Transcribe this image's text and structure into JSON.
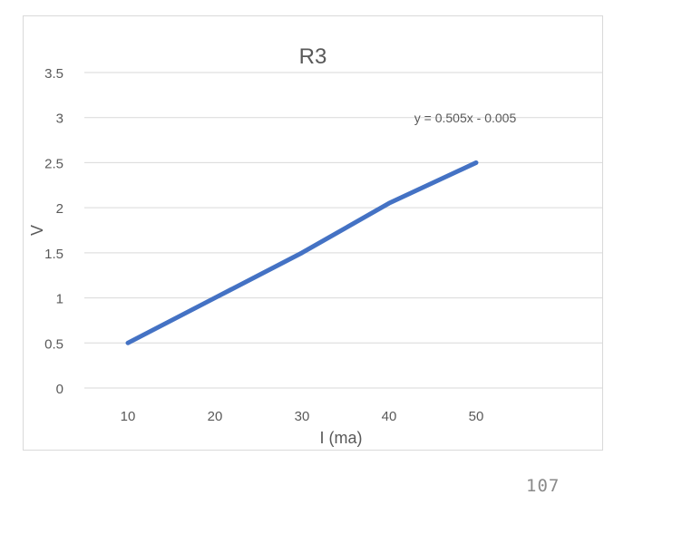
{
  "chart_data": {
    "type": "line",
    "title": "R3",
    "xlabel": "I (ma)",
    "ylabel": "V",
    "categories": [
      "10",
      "20",
      "30",
      "40",
      "50"
    ],
    "x": [
      10,
      20,
      30,
      40,
      50
    ],
    "series": [
      {
        "values": [
          0.5,
          1.0,
          1.5,
          2.05,
          2.5
        ],
        "color": "#4472c4"
      }
    ],
    "ylim": [
      0,
      3.5
    ],
    "yticks": [
      "0",
      "0.5",
      "1",
      "1.5",
      "2",
      "2.5",
      "3",
      "3.5"
    ],
    "grid": true,
    "legend": "none",
    "annotation": "y = 0.505x - 0.005"
  },
  "page": {
    "number": "107"
  }
}
